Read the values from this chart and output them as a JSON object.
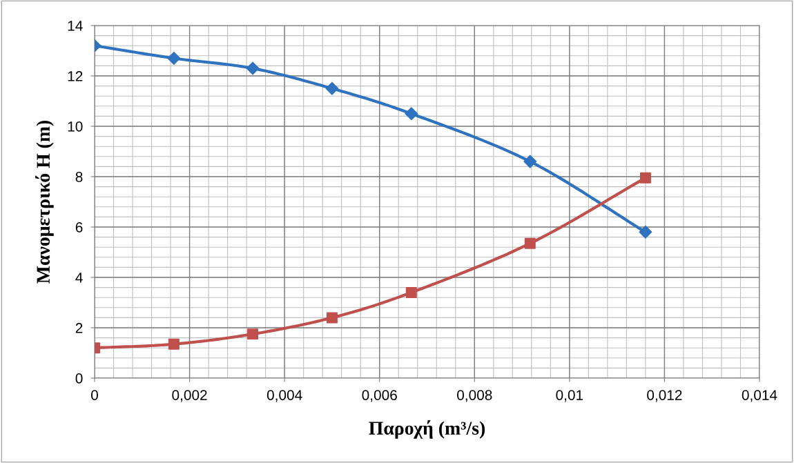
{
  "chart_data": {
    "type": "line",
    "xlabel": "Παροχή (m³/s)",
    "ylabel": "Μανομετρικό H (m)",
    "x": [
      0,
      0.00167,
      0.00333,
      0.005,
      0.00667,
      0.00917,
      0.0116
    ],
    "series": [
      {
        "color": "#2e72c0",
        "marker": "diamond",
        "values": [
          13.2,
          12.7,
          12.3,
          11.5,
          10.5,
          8.6,
          5.8
        ]
      },
      {
        "color": "#c0504d",
        "marker": "square",
        "values": [
          1.2,
          1.35,
          1.75,
          2.4,
          3.4,
          5.35,
          7.95
        ]
      }
    ],
    "xlim": [
      0,
      0.014
    ],
    "ylim": [
      0,
      14
    ],
    "xticks": [
      0,
      {
        "value": 0.002,
        "label": "0,002"
      },
      {
        "value": 0.004,
        "label": "0,004"
      },
      {
        "value": 0.006,
        "label": "0,006"
      },
      {
        "value": 0.008,
        "label": "0,008"
      },
      {
        "value": 0.01,
        "label": "0,01"
      },
      {
        "value": 0.012,
        "label": "0,012"
      },
      {
        "value": 0.014,
        "label": "0,014"
      }
    ],
    "yticks": [
      0,
      2,
      4,
      6,
      8,
      10,
      12,
      14
    ],
    "grid": true,
    "legend": false,
    "line_style": "solid"
  }
}
